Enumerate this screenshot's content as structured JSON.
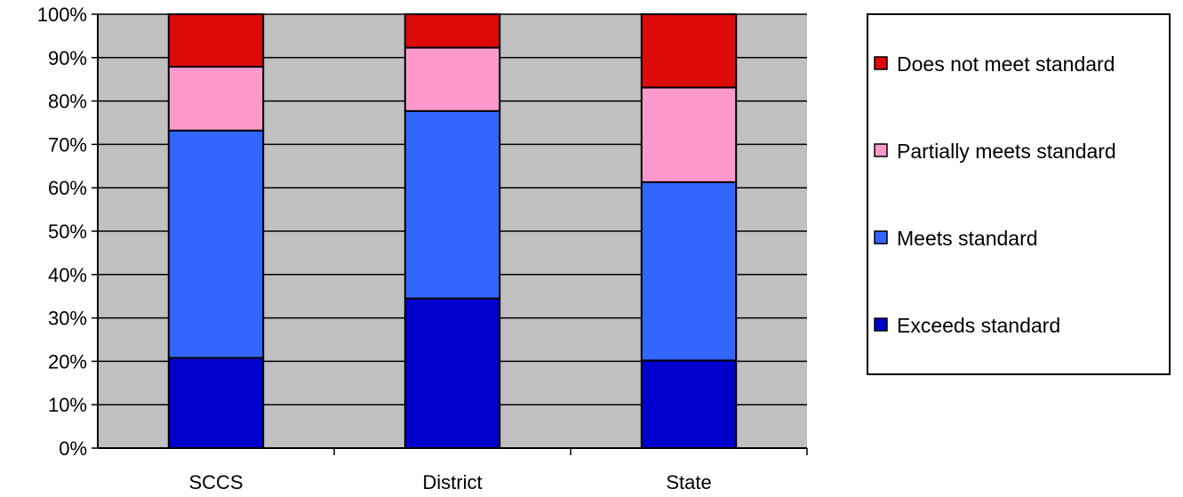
{
  "chart_data": {
    "type": "bar",
    "stacked": true,
    "percent_stacked": true,
    "title": "",
    "xlabel": "",
    "ylabel": "",
    "ylim": [
      0,
      100
    ],
    "y_ticks": [
      "0%",
      "10%",
      "20%",
      "30%",
      "40%",
      "50%",
      "60%",
      "70%",
      "80%",
      "90%",
      "100%"
    ],
    "categories": [
      "SCCS",
      "District",
      "State"
    ],
    "series": [
      {
        "name": "Exceeds standard",
        "color": "#0000cc",
        "values": [
          20.8,
          34.5,
          20.2
        ]
      },
      {
        "name": "Meets standard",
        "color": "#3366ff",
        "values": [
          52.4,
          43.2,
          41.1
        ]
      },
      {
        "name": "Partially meets standard",
        "color": "#ff99cc",
        "values": [
          14.7,
          14.6,
          21.8
        ]
      },
      {
        "name": "Does not meet standard",
        "color": "#dd0a0a",
        "values": [
          12.1,
          7.7,
          16.9
        ]
      }
    ],
    "grid": true,
    "plot_background": "#c0c0c0",
    "legend_position": "right",
    "legend_order": [
      "Does not meet standard",
      "Partially meets standard",
      "Meets standard",
      "Exceeds standard"
    ]
  }
}
